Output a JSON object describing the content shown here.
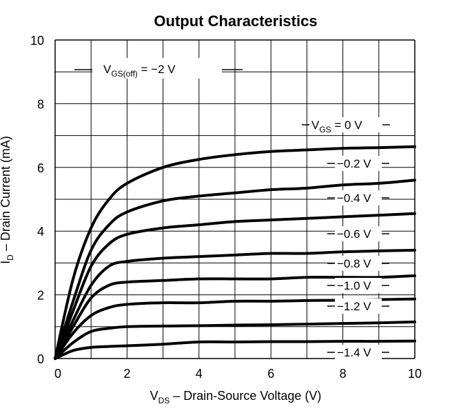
{
  "chart_data": {
    "type": "line",
    "title": "Output Characteristics",
    "xlabel": {
      "main": "V",
      "sub": "DS",
      "rest": " – Drain-Source Voltage (V)"
    },
    "ylabel": {
      "main": "I",
      "sub": "D",
      "rest": " – Drain Current (mA)"
    },
    "xlim": [
      0,
      10
    ],
    "ylim": [
      0,
      10
    ],
    "x_ticks": [
      "0",
      "2",
      "4",
      "6",
      "8",
      "10"
    ],
    "y_ticks": [
      "0",
      "2",
      "4",
      "6",
      "8",
      "10"
    ],
    "grid": true,
    "annotation": {
      "main": "V",
      "sub": "GS(off)",
      "rest": " = −2 V"
    },
    "series": [
      {
        "name": "V_GS = 0 V",
        "label_main": "V",
        "label_sub": "GS",
        "label_rest": " = 0 V",
        "x": [
          0,
          0.5,
          1,
          1.5,
          2,
          3,
          4,
          5,
          6,
          7,
          8,
          9,
          10
        ],
        "y": [
          0,
          2.5,
          4.1,
          5.0,
          5.5,
          6.0,
          6.25,
          6.4,
          6.5,
          6.55,
          6.6,
          6.62,
          6.65
        ]
      },
      {
        "name": "−0.2 V",
        "label_main": "−0.2 V",
        "label_sub": "",
        "label_rest": "",
        "x": [
          0,
          0.5,
          1,
          1.5,
          2,
          3,
          4,
          5,
          6,
          7,
          8,
          9,
          10
        ],
        "y": [
          0,
          1.8,
          3.4,
          4.2,
          4.6,
          4.95,
          5.1,
          5.2,
          5.3,
          5.35,
          5.45,
          5.5,
          5.6
        ]
      },
      {
        "name": "−0.4 V",
        "label_main": "−0.4 V",
        "label_sub": "",
        "label_rest": "",
        "x": [
          0,
          0.5,
          1,
          1.5,
          2,
          3,
          4,
          5,
          6,
          7,
          8,
          9,
          10
        ],
        "y": [
          0,
          1.5,
          2.9,
          3.6,
          3.9,
          4.1,
          4.2,
          4.3,
          4.35,
          4.4,
          4.45,
          4.5,
          4.55
        ]
      },
      {
        "name": "−0.6 V",
        "label_main": "−0.6 V",
        "label_sub": "",
        "label_rest": "",
        "x": [
          0,
          0.5,
          1,
          1.5,
          2,
          3,
          4,
          5,
          6,
          7,
          8,
          9,
          10
        ],
        "y": [
          0,
          1.2,
          2.3,
          2.9,
          3.05,
          3.15,
          3.2,
          3.25,
          3.3,
          3.3,
          3.35,
          3.38,
          3.4
        ]
      },
      {
        "name": "−0.8 V",
        "label_main": "−0.8 V",
        "label_sub": "",
        "label_rest": "",
        "x": [
          0,
          0.5,
          1,
          1.5,
          2,
          3,
          4,
          5,
          6,
          7,
          8,
          9,
          10
        ],
        "y": [
          0,
          1.0,
          1.9,
          2.3,
          2.4,
          2.45,
          2.5,
          2.5,
          2.5,
          2.55,
          2.55,
          2.55,
          2.6
        ]
      },
      {
        "name": "−1.0 V",
        "label_main": "−1.0 V",
        "label_sub": "",
        "label_rest": "",
        "x": [
          0,
          0.5,
          1,
          1.5,
          2,
          3,
          4,
          5,
          6,
          7,
          8,
          9,
          10
        ],
        "y": [
          0,
          0.8,
          1.35,
          1.6,
          1.7,
          1.75,
          1.75,
          1.8,
          1.8,
          1.82,
          1.83,
          1.85,
          1.87
        ]
      },
      {
        "name": "−1.2 V",
        "label_main": "−1.2 V",
        "label_sub": "",
        "label_rest": "",
        "x": [
          0,
          0.5,
          1,
          1.5,
          2,
          3,
          4,
          5,
          6,
          7,
          8,
          9,
          10
        ],
        "y": [
          0,
          0.5,
          0.85,
          0.95,
          1.0,
          1.02,
          1.03,
          1.05,
          1.06,
          1.08,
          1.1,
          1.12,
          1.15
        ]
      },
      {
        "name": "−1.4 V",
        "label_main": "−1.4 V",
        "label_sub": "",
        "label_rest": "",
        "x": [
          0,
          0.5,
          1,
          1.5,
          2,
          3,
          4,
          5,
          6,
          7,
          8,
          9,
          10
        ],
        "y": [
          0,
          0.25,
          0.35,
          0.38,
          0.4,
          0.45,
          0.52,
          0.52,
          0.53,
          0.53,
          0.54,
          0.54,
          0.55
        ]
      }
    ]
  }
}
